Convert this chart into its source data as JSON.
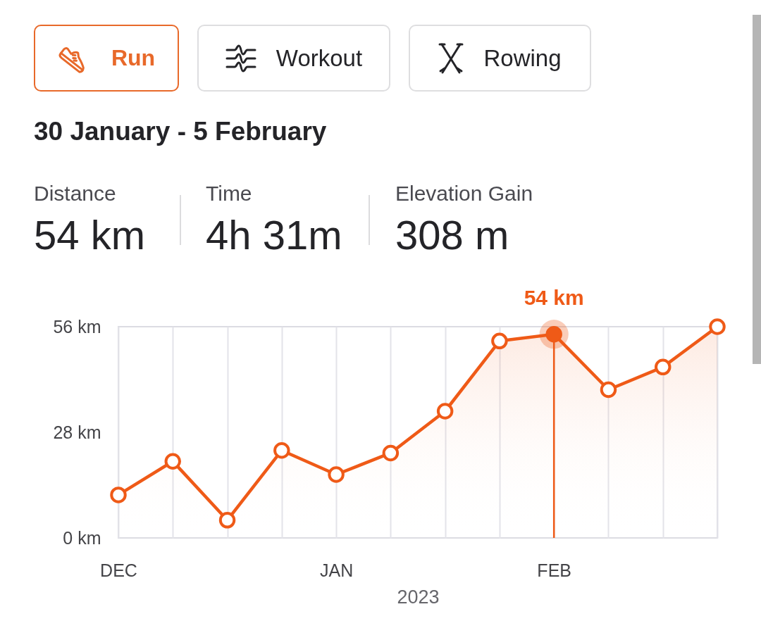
{
  "chart_data": {
    "type": "area",
    "title": "30 January - 5 February",
    "annotations": [
      "Run",
      "Workout",
      "Rowing",
      "Distance",
      "54 km",
      "Time",
      "4h 31m",
      "Elevation Gain",
      "308 m"
    ],
    "categories": [
      "DEC",
      null,
      null,
      null,
      "JAN",
      null,
      null,
      null,
      "FEB",
      null,
      null,
      null
    ],
    "values": [
      11.4,
      20.3,
      4.7,
      23.2,
      16.8,
      22.5,
      33.6,
      52.2,
      54,
      39.3,
      45.3,
      56
    ],
    "color": "#ef5a17",
    "value_labels": [
      null,
      null,
      null,
      null,
      null,
      null,
      null,
      null,
      "54 km",
      null,
      null,
      null
    ],
    "xlabel": "2023",
    "ylim": [
      0,
      56
    ],
    "yticks": [
      {
        "value": 0,
        "label": "0 km"
      },
      {
        "value": 28,
        "label": "28 km"
      },
      {
        "value": 56,
        "label": "56 km"
      }
    ],
    "grid": "x",
    "marker": "circle",
    "ref_lines": [
      {
        "axis": "x",
        "value": "FEB",
        "color": "#ef5a17"
      }
    ]
  }
}
